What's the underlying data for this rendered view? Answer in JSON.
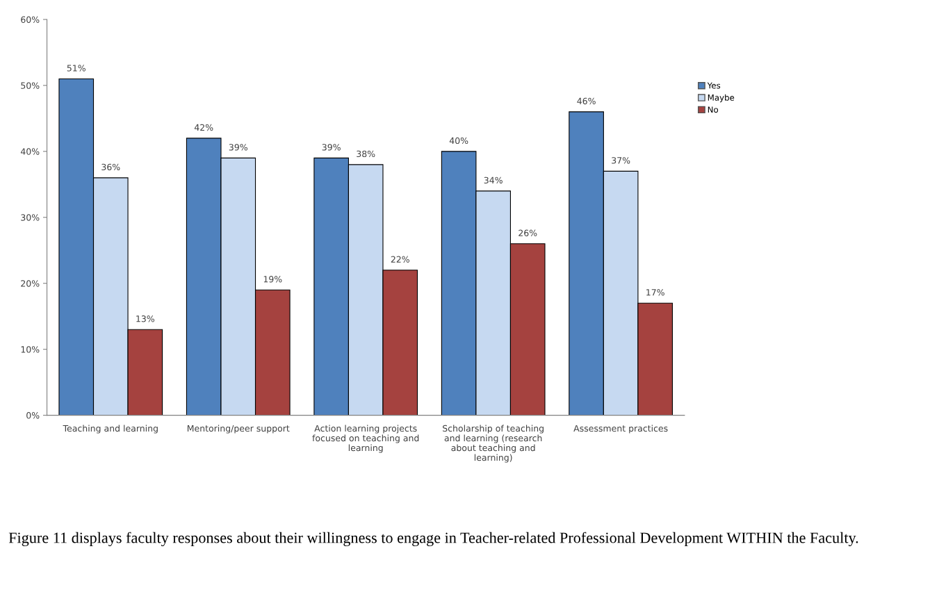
{
  "chart_data": {
    "type": "bar",
    "categories": [
      "Teaching and learning",
      "Mentoring/peer support",
      "Action learning projects focused on teaching and learning",
      "Scholarship of teaching and learning (research about teaching and learning)",
      "Assessment practices"
    ],
    "series": [
      {
        "name": "Yes",
        "color": "#4f81bd",
        "values": [
          51,
          42,
          39,
          40,
          46
        ],
        "value_labels": [
          "51%",
          "42%",
          "39%",
          "40%",
          "46%"
        ]
      },
      {
        "name": "Maybe",
        "color": "#c6d9f1",
        "values": [
          36,
          39,
          38,
          34,
          37
        ],
        "value_labels": [
          "36%",
          "39%",
          "38%",
          "34%",
          "37%"
        ]
      },
      {
        "name": "No",
        "color": "#a5423f",
        "values": [
          13,
          19,
          22,
          26,
          17
        ],
        "value_labels": [
          "13%",
          "19%",
          "22%",
          "26%",
          "17%"
        ]
      }
    ],
    "ylim": [
      0,
      60
    ],
    "yticks": [
      {
        "value": 0,
        "label": "0%"
      },
      {
        "value": 10,
        "label": "10%"
      },
      {
        "value": 20,
        "label": "20%"
      },
      {
        "value": 30,
        "label": "30%"
      },
      {
        "value": 40,
        "label": "40%"
      },
      {
        "value": 50,
        "label": "50%"
      },
      {
        "value": 60,
        "label": "60%"
      }
    ],
    "grid": false,
    "legend": "right",
    "annotations": [
      "Figure 11 displays faculty responses about their willingness to engage in Teacher-related Professional Development WITHIN the Faculty."
    ]
  }
}
